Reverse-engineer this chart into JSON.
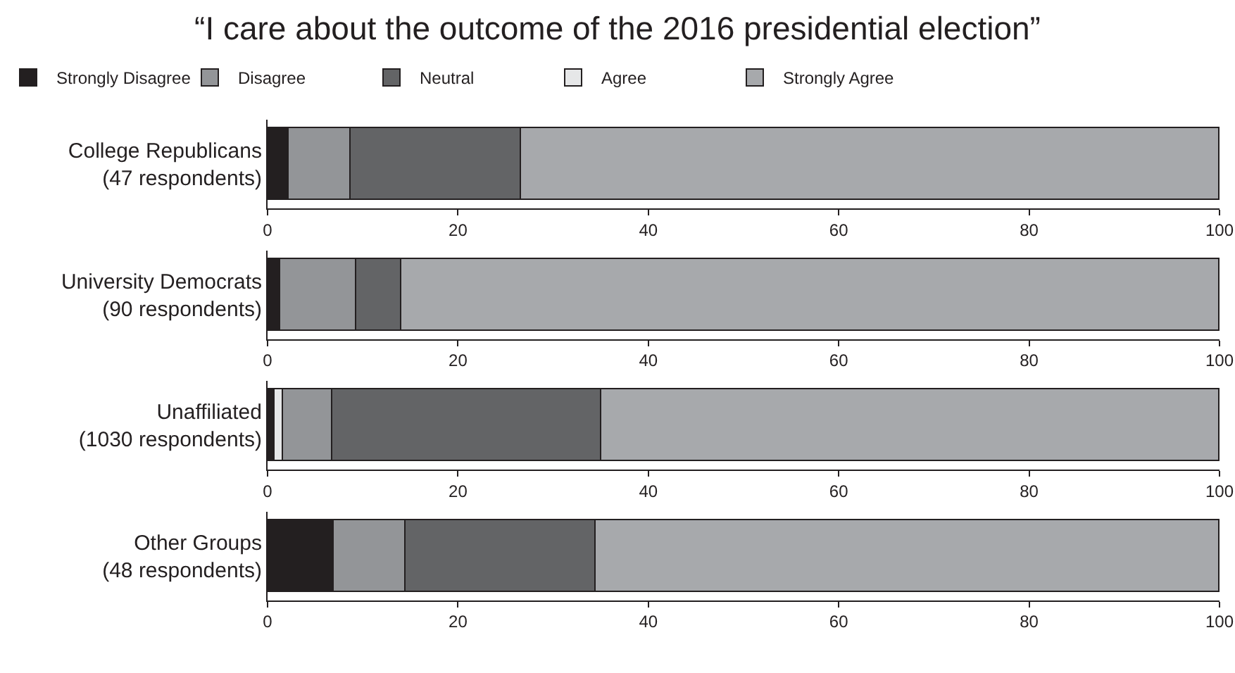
{
  "chart_data": [
    {
      "type": "bar",
      "orientation": "horizontal",
      "stacked": true,
      "title": "“I care about the outcome of the 2016 presidential election”",
      "legend": "top",
      "categories": [
        "College Republicans\n(47 respondents)"
      ],
      "xlim": [
        0,
        100
      ],
      "xticks": [
        0,
        20,
        40,
        60,
        80,
        100
      ],
      "series": [
        {
          "name": "Strongly Disagree",
          "color": "#231f20",
          "values": [
            2.2
          ]
        },
        {
          "name": "Disagree",
          "color": "#939598",
          "values": [
            6.6
          ]
        },
        {
          "name": "Neutral",
          "color": "#636466",
          "values": [
            17.9
          ]
        },
        {
          "name": "Agree",
          "color": "#e6e7e8",
          "values": [
            0
          ]
        },
        {
          "name": "Strongly Agree",
          "color": "#a7a9ac",
          "values": [
            73.3
          ]
        }
      ]
    },
    {
      "type": "bar",
      "orientation": "horizontal",
      "stacked": true,
      "categories": [
        "University Democrats\n(90 respondents)"
      ],
      "xlim": [
        0,
        100
      ],
      "xticks": [
        0,
        20,
        40,
        60,
        80,
        100
      ],
      "series": [
        {
          "color": "#231f20",
          "values": [
            1.3
          ]
        },
        {
          "color": "#939598",
          "values": [
            8.0
          ]
        },
        {
          "color": "#636466",
          "values": [
            4.8
          ]
        },
        {
          "color": "#e6e7e8",
          "values": [
            0
          ]
        },
        {
          "color": "#a7a9ac",
          "values": [
            85.9
          ]
        }
      ]
    },
    {
      "type": "bar",
      "orientation": "horizontal",
      "stacked": true,
      "categories": [
        "Unaffiliated\n(1030 respondents)"
      ],
      "xlim": [
        0,
        100
      ],
      "xticks": [
        0,
        20,
        40,
        60,
        80,
        100
      ],
      "series": [
        {
          "color": "#231f20",
          "values": [
            0.7
          ]
        },
        {
          "color": "#e6e7e8",
          "values": [
            0.9
          ]
        },
        {
          "color": "#939598",
          "values": [
            5.2
          ]
        },
        {
          "color": "#636466",
          "values": [
            28.3
          ]
        },
        {
          "color": "#a7a9ac",
          "values": [
            64.9
          ]
        }
      ]
    },
    {
      "type": "bar",
      "orientation": "horizontal",
      "stacked": true,
      "categories": [
        "Other Groups\n(48 respondents)"
      ],
      "xlim": [
        0,
        100
      ],
      "xticks": [
        0,
        20,
        40,
        60,
        80,
        100
      ],
      "series": [
        {
          "color": "#231f20",
          "values": [
            6.9
          ]
        },
        {
          "color": "#939598",
          "values": [
            7.6
          ]
        },
        {
          "color": "#636466",
          "values": [
            20.0
          ]
        },
        {
          "color": "#e6e7e8",
          "values": [
            0
          ]
        },
        {
          "color": "#a7a9ac",
          "values": [
            65.5
          ]
        }
      ]
    }
  ]
}
